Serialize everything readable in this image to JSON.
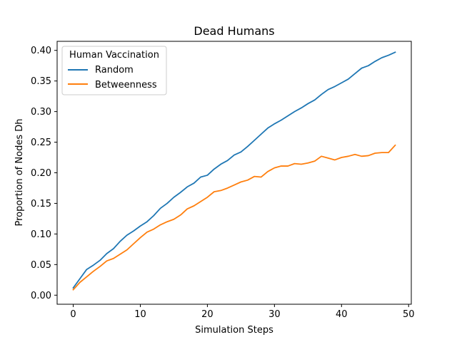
{
  "chart_data": {
    "type": "line",
    "title": "Dead Humans",
    "xlabel": "Simulation Steps",
    "ylabel": "Proportion of Nodes Dh",
    "xlim": [
      -2.4,
      50.4
    ],
    "ylim": [
      -0.0148,
      0.4148
    ],
    "xticks": [
      0,
      10,
      20,
      30,
      40,
      50
    ],
    "xtick_labels": [
      "0",
      "10",
      "20",
      "30",
      "40",
      "50"
    ],
    "yticks": [
      0.0,
      0.05,
      0.1,
      0.15,
      0.2,
      0.25,
      0.3,
      0.35,
      0.4
    ],
    "ytick_labels": [
      "0.00",
      "0.05",
      "0.10",
      "0.15",
      "0.20",
      "0.25",
      "0.30",
      "0.35",
      "0.40"
    ],
    "grid": false,
    "legend": {
      "title": "Human Vaccination",
      "placement": "top-left"
    },
    "x": [
      0,
      1,
      2,
      3,
      4,
      5,
      6,
      7,
      8,
      9,
      10,
      11,
      12,
      13,
      14,
      15,
      16,
      17,
      18,
      19,
      20,
      21,
      22,
      23,
      24,
      25,
      26,
      27,
      28,
      29,
      30,
      31,
      32,
      33,
      34,
      35,
      36,
      37,
      38,
      39,
      40,
      41,
      42,
      43,
      44,
      45,
      46,
      47,
      48
    ],
    "series": [
      {
        "name": "Random",
        "color": "#1f77b4",
        "values": [
          0.012,
          0.027,
          0.042,
          0.049,
          0.057,
          0.068,
          0.076,
          0.088,
          0.098,
          0.105,
          0.113,
          0.12,
          0.13,
          0.142,
          0.15,
          0.16,
          0.168,
          0.177,
          0.183,
          0.193,
          0.196,
          0.206,
          0.214,
          0.22,
          0.229,
          0.234,
          0.243,
          0.253,
          0.263,
          0.273,
          0.28,
          0.286,
          0.293,
          0.3,
          0.306,
          0.313,
          0.319,
          0.328,
          0.336,
          0.341,
          0.347,
          0.353,
          0.362,
          0.371,
          0.375,
          0.382,
          0.388,
          0.392,
          0.397
        ]
      },
      {
        "name": "Betweenness",
        "color": "#ff7f0e",
        "values": [
          0.009,
          0.021,
          0.03,
          0.039,
          0.047,
          0.056,
          0.06,
          0.067,
          0.074,
          0.084,
          0.094,
          0.103,
          0.108,
          0.115,
          0.12,
          0.124,
          0.131,
          0.141,
          0.146,
          0.153,
          0.16,
          0.169,
          0.171,
          0.175,
          0.18,
          0.185,
          0.188,
          0.194,
          0.193,
          0.202,
          0.208,
          0.211,
          0.211,
          0.215,
          0.214,
          0.216,
          0.219,
          0.227,
          0.224,
          0.221,
          0.225,
          0.227,
          0.23,
          0.227,
          0.228,
          0.232,
          0.233,
          0.233,
          0.245
        ]
      }
    ]
  }
}
